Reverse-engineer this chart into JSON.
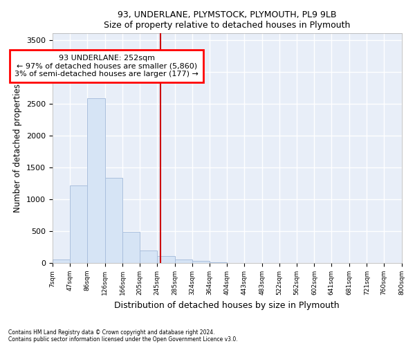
{
  "title1": "93, UNDERLANE, PLYMSTOCK, PLYMOUTH, PL9 9LB",
  "title2": "Size of property relative to detached houses in Plymouth",
  "xlabel": "Distribution of detached houses by size in Plymouth",
  "ylabel": "Number of detached properties",
  "footer1": "Contains HM Land Registry data © Crown copyright and database right 2024.",
  "footer2": "Contains public sector information licensed under the Open Government Licence v3.0.",
  "annotation_line1": "93 UNDERLANE: 252sqm",
  "annotation_line2": "← 97% of detached houses are smaller (5,860)",
  "annotation_line3": "3% of semi-detached houses are larger (177) →",
  "property_size": 252,
  "bar_edge_color": "#aabfdd",
  "bar_face_color": "#d6e4f5",
  "vline_color": "#cc0000",
  "background_color": "#e8eef8",
  "grid_color": "#ffffff",
  "bins": [
    7,
    47,
    86,
    126,
    166,
    205,
    245,
    285,
    324,
    364,
    404,
    443,
    483,
    522,
    562,
    602,
    641,
    681,
    721,
    760,
    800
  ],
  "counts": [
    50,
    1220,
    2580,
    1340,
    490,
    200,
    110,
    50,
    35,
    12,
    5,
    3,
    0,
    0,
    0,
    0,
    0,
    0,
    0,
    0
  ],
  "ylim": [
    0,
    3600
  ],
  "yticks": [
    0,
    500,
    1000,
    1500,
    2000,
    2500,
    3000,
    3500
  ]
}
